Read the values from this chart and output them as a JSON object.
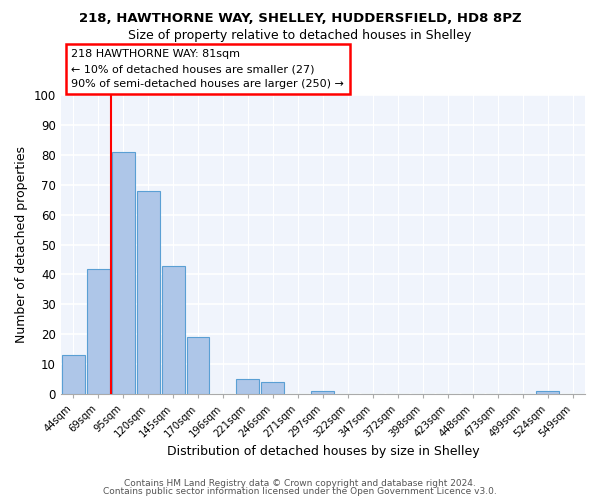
{
  "title1": "218, HAWTHORNE WAY, SHELLEY, HUDDERSFIELD, HD8 8PZ",
  "title2": "Size of property relative to detached houses in Shelley",
  "xlabel": "Distribution of detached houses by size in Shelley",
  "ylabel": "Number of detached properties",
  "footer1": "Contains HM Land Registry data © Crown copyright and database right 2024.",
  "footer2": "Contains public sector information licensed under the Open Government Licence v3.0.",
  "bin_labels": [
    "44sqm",
    "69sqm",
    "95sqm",
    "120sqm",
    "145sqm",
    "170sqm",
    "196sqm",
    "221sqm",
    "246sqm",
    "271sqm",
    "297sqm",
    "322sqm",
    "347sqm",
    "372sqm",
    "398sqm",
    "423sqm",
    "448sqm",
    "473sqm",
    "499sqm",
    "524sqm",
    "549sqm"
  ],
  "bar_values": [
    13,
    42,
    81,
    68,
    43,
    19,
    0,
    5,
    4,
    0,
    1,
    0,
    0,
    0,
    0,
    0,
    0,
    0,
    0,
    1,
    0
  ],
  "bar_color": "#aec6e8",
  "bar_edge_color": "#5a9fd4",
  "ylim": [
    0,
    100
  ],
  "yticks": [
    0,
    10,
    20,
    30,
    40,
    50,
    60,
    70,
    80,
    90,
    100
  ],
  "vline_x": 1.5,
  "vline_color": "red",
  "annotation_line1": "218 HAWTHORNE WAY: 81sqm",
  "annotation_line2": "← 10% of detached houses are smaller (27)",
  "annotation_line3": "90% of semi-detached houses are larger (250) →",
  "bg_color": "#ffffff",
  "plot_bg_color": "#f0f4fc"
}
